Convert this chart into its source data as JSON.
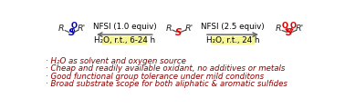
{
  "bg_color": "#ffffff",
  "bullet_color": "#8B0000",
  "bullet_points": [
    "· H₂O as solvent and oxygen source",
    "· Cheap and readily available oxidant, no additives or metals",
    "· Good functional group tolerance under mild conditons",
    "· Broad substrate scope for both aliphatic & aromatic sulfides"
  ],
  "arrow1_label_top": "NFSI (1.0 equiv)",
  "arrow1_label_bot": "H₂O, r.t., 6-24 h",
  "arrow2_label_top": "NFSI (2.5 equiv)",
  "arrow2_label_bot": "H₂O, r.t., 24 h",
  "arrow_color": "#666666",
  "box_color": "#f5f596",
  "sulfide_S_color": "#dd0000",
  "sulfoxide_S_color": "#0000cc",
  "sulfoxide_O_color": "#0000cc",
  "sulfone_S_color": "#dd0000",
  "sulfone_O_color": "#dd0000",
  "R_color": "#222222",
  "bond_color": "#555555",
  "font_size_bullet": 6.2,
  "font_size_label": 6.3,
  "font_size_mol": 7.5,
  "font_size_R": 6.8
}
